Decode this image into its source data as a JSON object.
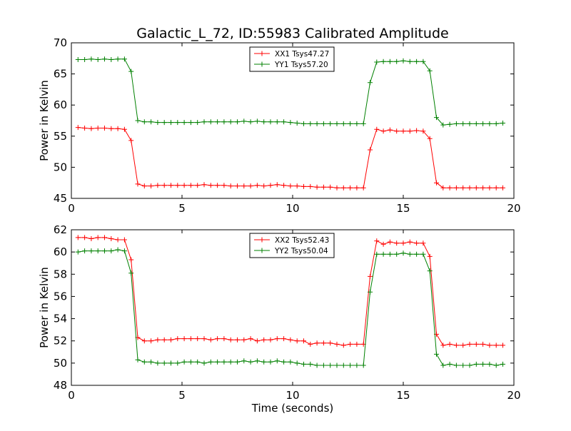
{
  "title": "Galactic_L_72, ID:55983 Calibrated Amplitude",
  "colors": {
    "red": "#ff0000",
    "green": "#008000"
  },
  "chart_data": [
    {
      "type": "line",
      "ylabel": "Power in Kelvin",
      "xlabel": "",
      "xlim": [
        0,
        20
      ],
      "ylim": [
        45,
        70
      ],
      "xticks": [
        0,
        5,
        10,
        15,
        20
      ],
      "yticks": [
        45,
        50,
        55,
        60,
        65,
        70
      ],
      "grid": false,
      "legend_position": "top-center",
      "x": [
        0.3,
        0.6,
        0.9,
        1.2,
        1.5,
        1.8,
        2.1,
        2.4,
        2.7,
        3.0,
        3.3,
        3.6,
        3.9,
        4.2,
        4.5,
        4.8,
        5.1,
        5.4,
        5.7,
        6.0,
        6.3,
        6.6,
        6.9,
        7.2,
        7.5,
        7.8,
        8.1,
        8.4,
        8.7,
        9.0,
        9.3,
        9.6,
        9.9,
        10.2,
        10.5,
        10.8,
        11.1,
        11.4,
        11.7,
        12.0,
        12.3,
        12.6,
        12.9,
        13.2,
        13.5,
        13.8,
        14.1,
        14.4,
        14.7,
        15.0,
        15.3,
        15.6,
        15.9,
        16.2,
        16.5,
        16.8,
        17.1,
        17.4,
        17.7,
        18.0,
        18.3,
        18.6,
        18.9,
        19.2,
        19.5
      ],
      "series": [
        {
          "name": "XX1 Tsys47.27",
          "color": "#ff0000",
          "values": [
            56.4,
            56.3,
            56.2,
            56.3,
            56.3,
            56.2,
            56.2,
            56.1,
            54.3,
            47.3,
            47.0,
            47.0,
            47.1,
            47.1,
            47.1,
            47.1,
            47.1,
            47.1,
            47.1,
            47.2,
            47.1,
            47.1,
            47.1,
            47.0,
            47.0,
            47.0,
            47.0,
            47.1,
            47.0,
            47.1,
            47.2,
            47.1,
            47.0,
            47.0,
            46.9,
            46.9,
            46.8,
            46.8,
            46.8,
            46.7,
            46.7,
            46.7,
            46.7,
            46.7,
            52.8,
            56.1,
            55.8,
            56.0,
            55.8,
            55.8,
            55.8,
            55.9,
            55.8,
            54.6,
            47.5,
            46.7,
            46.7,
            46.7,
            46.7,
            46.7,
            46.7,
            46.7,
            46.7,
            46.7,
            46.7
          ]
        },
        {
          "name": "YY1 Tsys57.20",
          "color": "#008000",
          "values": [
            67.3,
            67.3,
            67.4,
            67.3,
            67.4,
            67.3,
            67.4,
            67.4,
            65.4,
            57.5,
            57.3,
            57.3,
            57.2,
            57.2,
            57.2,
            57.2,
            57.2,
            57.2,
            57.2,
            57.3,
            57.3,
            57.3,
            57.3,
            57.3,
            57.3,
            57.4,
            57.3,
            57.4,
            57.3,
            57.3,
            57.3,
            57.3,
            57.2,
            57.1,
            57.0,
            57.0,
            57.0,
            57.0,
            57.0,
            57.0,
            57.0,
            57.0,
            57.0,
            57.0,
            63.6,
            66.9,
            67.0,
            67.0,
            67.0,
            67.1,
            67.0,
            67.0,
            67.0,
            65.5,
            58.0,
            56.8,
            56.9,
            57.0,
            57.0,
            57.0,
            57.0,
            57.0,
            57.0,
            57.0,
            57.1
          ]
        }
      ]
    },
    {
      "type": "line",
      "ylabel": "Power in Kelvin",
      "xlabel": "Time (seconds)",
      "xlim": [
        0,
        20
      ],
      "ylim": [
        48,
        62
      ],
      "xticks": [
        0,
        5,
        10,
        15,
        20
      ],
      "yticks": [
        48,
        50,
        52,
        54,
        56,
        58,
        60,
        62
      ],
      "grid": false,
      "legend_position": "top-center",
      "x": [
        0.3,
        0.6,
        0.9,
        1.2,
        1.5,
        1.8,
        2.1,
        2.4,
        2.7,
        3.0,
        3.3,
        3.6,
        3.9,
        4.2,
        4.5,
        4.8,
        5.1,
        5.4,
        5.7,
        6.0,
        6.3,
        6.6,
        6.9,
        7.2,
        7.5,
        7.8,
        8.1,
        8.4,
        8.7,
        9.0,
        9.3,
        9.6,
        9.9,
        10.2,
        10.5,
        10.8,
        11.1,
        11.4,
        11.7,
        12.0,
        12.3,
        12.6,
        12.9,
        13.2,
        13.5,
        13.8,
        14.1,
        14.4,
        14.7,
        15.0,
        15.3,
        15.6,
        15.9,
        16.2,
        16.5,
        16.8,
        17.1,
        17.4,
        17.7,
        18.0,
        18.3,
        18.6,
        18.9,
        19.2,
        19.5
      ],
      "series": [
        {
          "name": "XX2 Tsys52.43",
          "color": "#ff0000",
          "values": [
            61.3,
            61.3,
            61.2,
            61.3,
            61.3,
            61.2,
            61.1,
            61.1,
            59.3,
            52.3,
            52.0,
            52.0,
            52.1,
            52.1,
            52.1,
            52.2,
            52.2,
            52.2,
            52.2,
            52.2,
            52.1,
            52.2,
            52.2,
            52.1,
            52.1,
            52.1,
            52.2,
            52.0,
            52.1,
            52.1,
            52.2,
            52.2,
            52.1,
            52.0,
            52.0,
            51.7,
            51.8,
            51.8,
            51.8,
            51.7,
            51.6,
            51.7,
            51.7,
            51.7,
            57.8,
            61.0,
            60.7,
            60.9,
            60.8,
            60.8,
            60.9,
            60.8,
            60.8,
            59.6,
            52.6,
            51.6,
            51.7,
            51.6,
            51.6,
            51.7,
            51.7,
            51.7,
            51.6,
            51.6,
            51.6
          ]
        },
        {
          "name": "YY2 Tsys50.04",
          "color": "#008000",
          "values": [
            60.0,
            60.1,
            60.1,
            60.1,
            60.1,
            60.1,
            60.2,
            60.1,
            58.1,
            50.3,
            50.1,
            50.1,
            50.0,
            50.0,
            50.0,
            50.0,
            50.1,
            50.1,
            50.1,
            50.0,
            50.1,
            50.1,
            50.1,
            50.1,
            50.1,
            50.2,
            50.1,
            50.2,
            50.1,
            50.1,
            50.2,
            50.1,
            50.1,
            50.0,
            49.9,
            49.9,
            49.8,
            49.8,
            49.8,
            49.8,
            49.8,
            49.8,
            49.8,
            49.8,
            56.4,
            59.8,
            59.8,
            59.8,
            59.8,
            59.9,
            59.8,
            59.8,
            59.8,
            58.3,
            50.8,
            49.8,
            49.9,
            49.8,
            49.8,
            49.8,
            49.9,
            49.9,
            49.9,
            49.8,
            49.9
          ]
        }
      ]
    }
  ]
}
